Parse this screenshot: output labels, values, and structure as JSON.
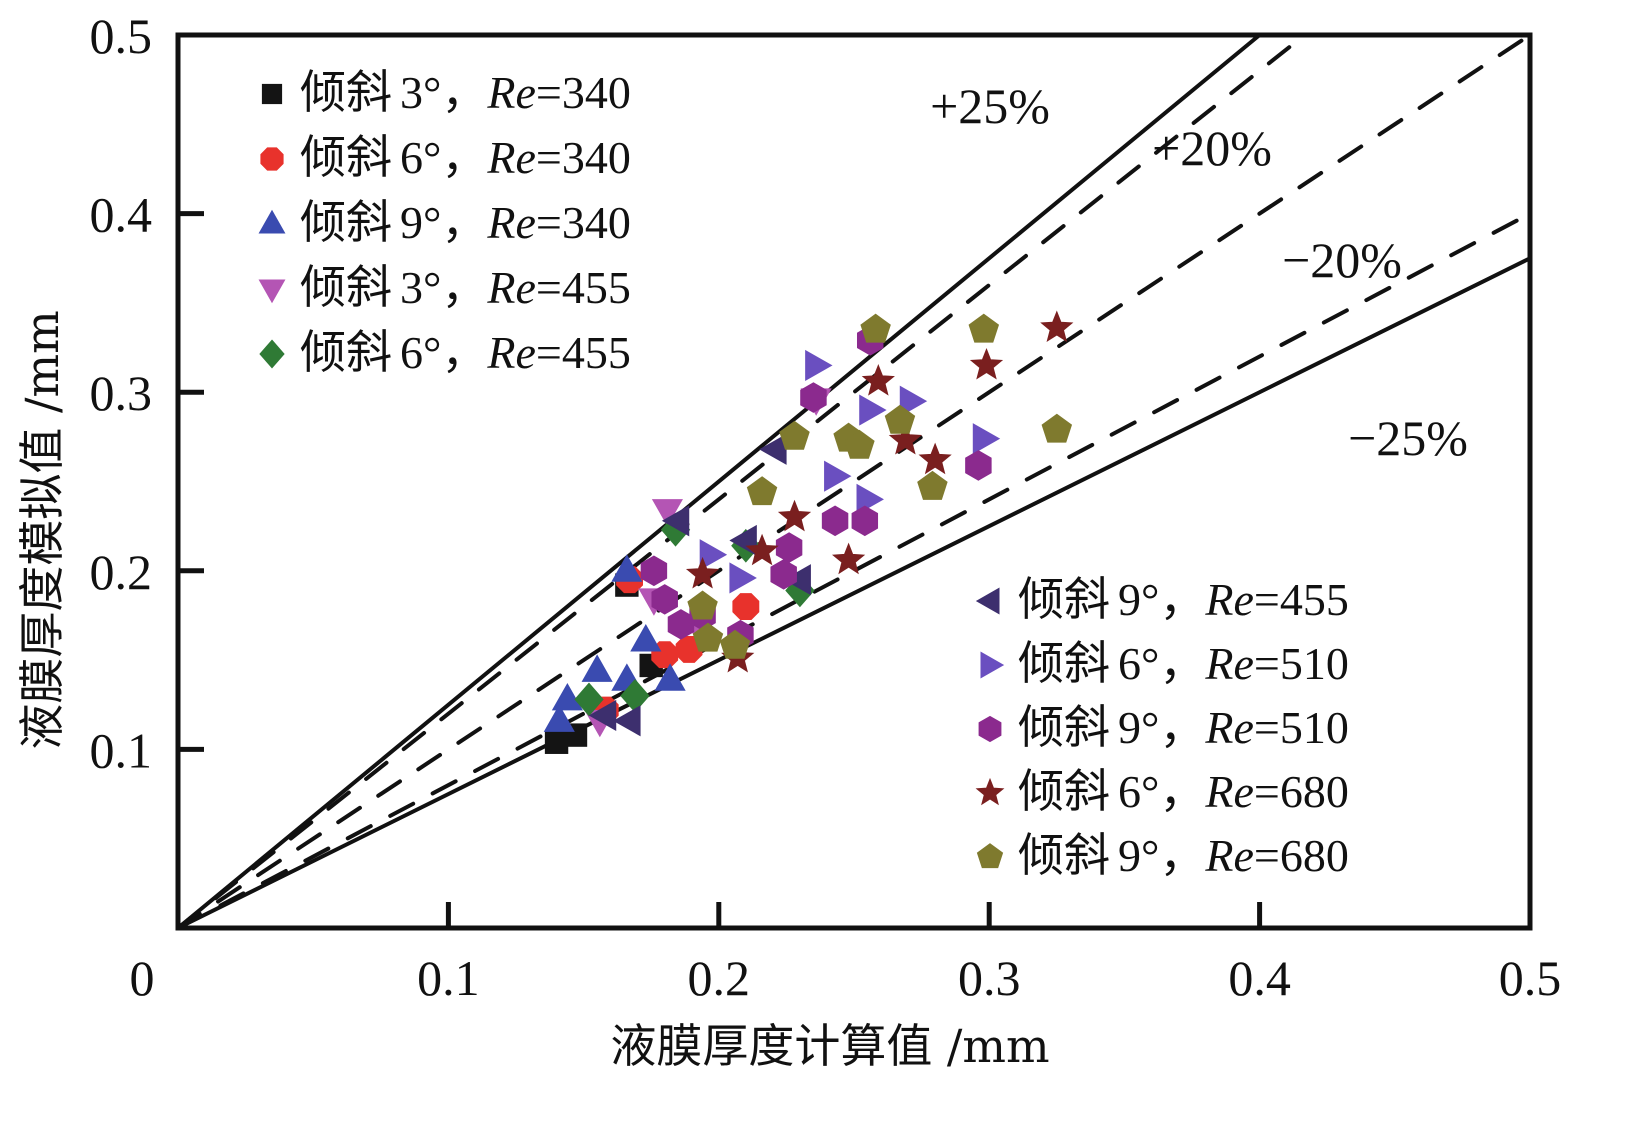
{
  "chart_data": {
    "type": "scatter",
    "title": "",
    "xlabel": "液膜厚度计算值 /mm",
    "ylabel": "液膜厚度模拟值 /mm",
    "xlim": [
      0,
      0.5
    ],
    "ylim": [
      0,
      0.5
    ],
    "x_ticks": [
      "0",
      "0.1",
      "0.2",
      "0.3",
      "0.4",
      "0.5"
    ],
    "y_ticks": [
      "0.1",
      "0.2",
      "0.3",
      "0.4",
      "0.5"
    ],
    "grid": false,
    "reference_lines": [
      {
        "label": "+25%",
        "factor": 1.25,
        "style": "solid"
      },
      {
        "label": "+20%",
        "factor": 1.2,
        "style": "dashed"
      },
      {
        "label": "",
        "factor": 1.0,
        "style": "dashed"
      },
      {
        "label": "−20%",
        "factor": 0.8,
        "style": "dashed"
      },
      {
        "label": "−25%",
        "factor": 0.75,
        "style": "solid"
      }
    ],
    "legend_left_position": "top-left",
    "legend_right_position": "bottom-right",
    "series": [
      {
        "name_cn": "倾斜",
        "angle": "3°",
        "re": "340",
        "marker": "square",
        "color": "#141414",
        "group": "left",
        "points": [
          [
            0.14,
            0.104
          ],
          [
            0.147,
            0.108
          ],
          [
            0.166,
            0.192
          ],
          [
            0.175,
            0.147
          ]
        ]
      },
      {
        "name_cn": "倾斜",
        "angle": "6°",
        "re": "340",
        "marker": "circle",
        "color": "#e8322c",
        "group": "left",
        "points": [
          [
            0.21,
            0.18
          ],
          [
            0.18,
            0.153
          ],
          [
            0.167,
            0.195
          ],
          [
            0.158,
            0.122
          ],
          [
            0.189,
            0.156
          ]
        ]
      },
      {
        "name_cn": "倾斜",
        "angle": "9°",
        "re": "340",
        "marker": "triangle-up",
        "color": "#3a4bb0",
        "group": "left",
        "points": [
          [
            0.166,
            0.2
          ],
          [
            0.173,
            0.161
          ],
          [
            0.155,
            0.144
          ],
          [
            0.166,
            0.139
          ],
          [
            0.182,
            0.139
          ],
          [
            0.144,
            0.128
          ],
          [
            0.141,
            0.116
          ]
        ]
      },
      {
        "name_cn": "倾斜",
        "angle": "3°",
        "re": "455",
        "marker": "triangle-down",
        "color": "#b455b4",
        "group": "left",
        "points": [
          [
            0.181,
            0.234
          ],
          [
            0.236,
            0.296
          ],
          [
            0.156,
            0.116
          ],
          [
            0.176,
            0.184
          ],
          [
            0.193,
            0.167
          ]
        ]
      },
      {
        "name_cn": "倾斜",
        "angle": "6°",
        "re": "455",
        "marker": "diamond",
        "color": "#2f7a35",
        "group": "left",
        "points": [
          [
            0.184,
            0.223
          ],
          [
            0.21,
            0.214
          ],
          [
            0.23,
            0.189
          ],
          [
            0.152,
            0.128
          ],
          [
            0.169,
            0.13
          ]
        ]
      },
      {
        "name_cn": "倾斜",
        "angle": "9°",
        "re": "455",
        "marker": "triangle-left",
        "color": "#3d2f6e",
        "group": "right",
        "points": [
          [
            0.221,
            0.268
          ],
          [
            0.185,
            0.228
          ],
          [
            0.21,
            0.217
          ],
          [
            0.23,
            0.195
          ],
          [
            0.158,
            0.119
          ],
          [
            0.167,
            0.116
          ]
        ]
      },
      {
        "name_cn": "倾斜",
        "angle": "6°",
        "re": "510",
        "marker": "triangle-right",
        "color": "#6a4fc0",
        "group": "right",
        "points": [
          [
            0.236,
            0.315
          ],
          [
            0.256,
            0.29
          ],
          [
            0.271,
            0.295
          ],
          [
            0.298,
            0.274
          ],
          [
            0.243,
            0.253
          ],
          [
            0.255,
            0.24
          ],
          [
            0.197,
            0.209
          ],
          [
            0.208,
            0.196
          ]
        ]
      },
      {
        "name_cn": "倾斜",
        "angle": "9°",
        "re": "510",
        "marker": "hexagon",
        "color": "#8b2a8e",
        "group": "right",
        "points": [
          [
            0.256,
            0.329
          ],
          [
            0.235,
            0.297
          ],
          [
            0.296,
            0.259
          ],
          [
            0.243,
            0.228
          ],
          [
            0.254,
            0.228
          ],
          [
            0.226,
            0.213
          ],
          [
            0.224,
            0.198
          ],
          [
            0.176,
            0.2
          ],
          [
            0.18,
            0.184
          ],
          [
            0.194,
            0.175
          ],
          [
            0.208,
            0.164
          ],
          [
            0.186,
            0.17
          ]
        ]
      },
      {
        "name_cn": "倾斜",
        "angle": "6°",
        "re": "680",
        "marker": "star",
        "color": "#7a1f1f",
        "group": "right",
        "points": [
          [
            0.325,
            0.336
          ],
          [
            0.299,
            0.315
          ],
          [
            0.259,
            0.306
          ],
          [
            0.269,
            0.273
          ],
          [
            0.28,
            0.262
          ],
          [
            0.228,
            0.23
          ],
          [
            0.248,
            0.206
          ],
          [
            0.216,
            0.211
          ],
          [
            0.194,
            0.198
          ],
          [
            0.207,
            0.151
          ]
        ]
      },
      {
        "name_cn": "倾斜",
        "angle": "9°",
        "re": "680",
        "marker": "pentagon",
        "color": "#7f7a2e",
        "group": "right",
        "points": [
          [
            0.258,
            0.335
          ],
          [
            0.298,
            0.335
          ],
          [
            0.325,
            0.279
          ],
          [
            0.228,
            0.275
          ],
          [
            0.248,
            0.274
          ],
          [
            0.252,
            0.27
          ],
          [
            0.267,
            0.284
          ],
          [
            0.279,
            0.247
          ],
          [
            0.216,
            0.244
          ],
          [
            0.194,
            0.18
          ],
          [
            0.196,
            0.162
          ],
          [
            0.206,
            0.158
          ]
        ]
      }
    ]
  }
}
